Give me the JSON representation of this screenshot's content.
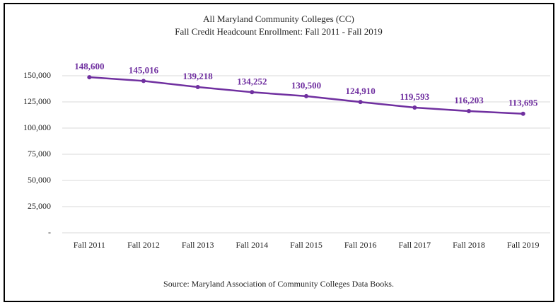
{
  "chart_data": {
    "type": "line",
    "title": "All Maryland Community Colleges (CC)",
    "subtitle": "Fall Credit Headcount Enrollment: Fall 2011 - Fall 2019",
    "source": "Source: Maryland Association  of Community Colleges Data Books.",
    "categories": [
      "Fall 2011",
      "Fall 2012",
      "Fall 2013",
      "Fall 2014",
      "Fall 2015",
      "Fall 2016",
      "Fall 2017",
      "Fall 2018",
      "Fall 2019"
    ],
    "values": [
      148600,
      145016,
      139218,
      134252,
      130500,
      124910,
      119593,
      116203,
      113695
    ],
    "value_labels": [
      "148,600",
      "145,016",
      "139,218",
      "134,252",
      "130,500",
      "124,910",
      "119,593",
      "116,203",
      "113,695"
    ],
    "color": "#7030a0",
    "ylim": [
      0,
      150000
    ],
    "yticks": [
      {
        "value": 0,
        "label": "-"
      },
      {
        "value": 25000,
        "label": "25,000"
      },
      {
        "value": 50000,
        "label": "50,000"
      },
      {
        "value": 75000,
        "label": "75,000"
      },
      {
        "value": 100000,
        "label": "100,000"
      },
      {
        "value": 125000,
        "label": "125,000"
      },
      {
        "value": 150000,
        "label": "150,000"
      }
    ],
    "grid": true
  }
}
